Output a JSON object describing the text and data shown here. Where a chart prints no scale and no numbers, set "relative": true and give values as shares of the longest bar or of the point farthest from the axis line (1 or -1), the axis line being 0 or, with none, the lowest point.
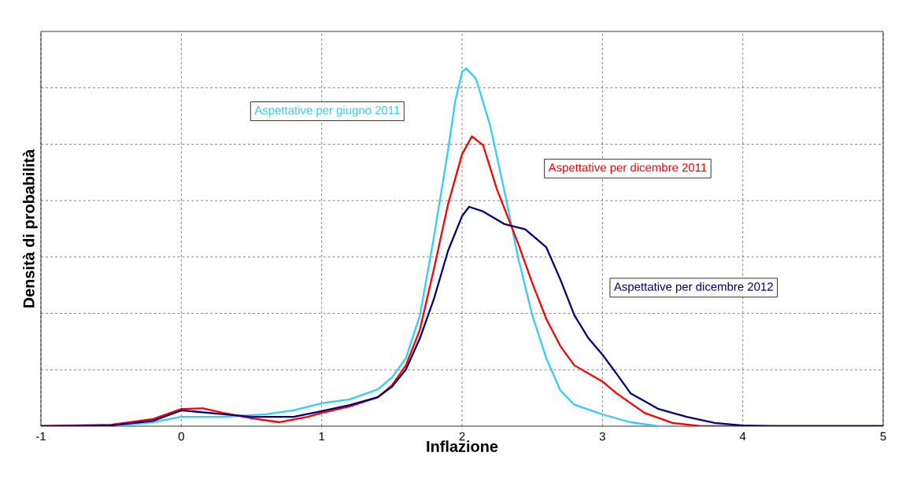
{
  "chart_data": {
    "type": "line",
    "relative": true,
    "xlabel": "Inflazione",
    "ylabel": "Densità di probabilità",
    "xlim": [
      -1,
      5
    ],
    "xticks": [
      -1,
      0,
      1,
      2,
      3,
      4,
      5
    ],
    "grid": true,
    "marker": "none",
    "line_style": "solid",
    "series": [
      {
        "name": "Aspettative per giugno 2011",
        "color": "#33ccff",
        "x": [
          -1,
          -0.5,
          -0.2,
          0,
          0.3,
          0.6,
          0.8,
          1.0,
          1.2,
          1.4,
          1.5,
          1.6,
          1.7,
          1.8,
          1.9,
          1.95,
          2.0,
          2.03,
          2.1,
          2.2,
          2.3,
          2.4,
          2.5,
          2.6,
          2.7,
          2.8,
          3.0,
          3.2,
          3.4,
          5
        ],
        "values": [
          0,
          0,
          0.011,
          0.026,
          0.026,
          0.033,
          0.044,
          0.064,
          0.075,
          0.103,
          0.136,
          0.19,
          0.31,
          0.53,
          0.77,
          0.905,
          0.99,
          1.0,
          0.97,
          0.84,
          0.66,
          0.47,
          0.31,
          0.19,
          0.1,
          0.06,
          0.033,
          0.011,
          0,
          0
        ]
      },
      {
        "name": "Aspettative per dicembre 2011",
        "color": "#ff0000",
        "x": [
          -1,
          -0.5,
          -0.2,
          0,
          0.15,
          0.3,
          0.5,
          0.7,
          0.9,
          1.0,
          1.2,
          1.4,
          1.5,
          1.6,
          1.7,
          1.8,
          1.9,
          2.0,
          2.07,
          2.15,
          2.25,
          2.4,
          2.5,
          2.6,
          2.7,
          2.8,
          3.0,
          3.1,
          3.3,
          3.5,
          3.7,
          5
        ],
        "values": [
          0,
          0.004,
          0.02,
          0.048,
          0.05,
          0.037,
          0.022,
          0.011,
          0.026,
          0.037,
          0.055,
          0.081,
          0.114,
          0.17,
          0.27,
          0.44,
          0.62,
          0.76,
          0.81,
          0.785,
          0.66,
          0.51,
          0.4,
          0.3,
          0.224,
          0.17,
          0.125,
          0.092,
          0.037,
          0.009,
          0,
          0
        ]
      },
      {
        "name": "Aspettative per dicembre 2012",
        "color": "#000080",
        "x": [
          -1,
          -0.5,
          -0.2,
          0,
          0.2,
          0.5,
          0.8,
          1.0,
          1.2,
          1.4,
          1.5,
          1.6,
          1.7,
          1.8,
          1.9,
          2.0,
          2.05,
          2.15,
          2.3,
          2.45,
          2.6,
          2.7,
          2.8,
          2.9,
          3.0,
          3.1,
          3.2,
          3.4,
          3.6,
          3.8,
          4.0,
          4.2,
          5
        ],
        "values": [
          0,
          0.002,
          0.015,
          0.044,
          0.037,
          0.026,
          0.026,
          0.042,
          0.059,
          0.081,
          0.11,
          0.158,
          0.246,
          0.356,
          0.49,
          0.587,
          0.613,
          0.6,
          0.565,
          0.55,
          0.5,
          0.41,
          0.31,
          0.246,
          0.2,
          0.147,
          0.092,
          0.048,
          0.026,
          0.009,
          0.002,
          0,
          0
        ]
      }
    ]
  }
}
